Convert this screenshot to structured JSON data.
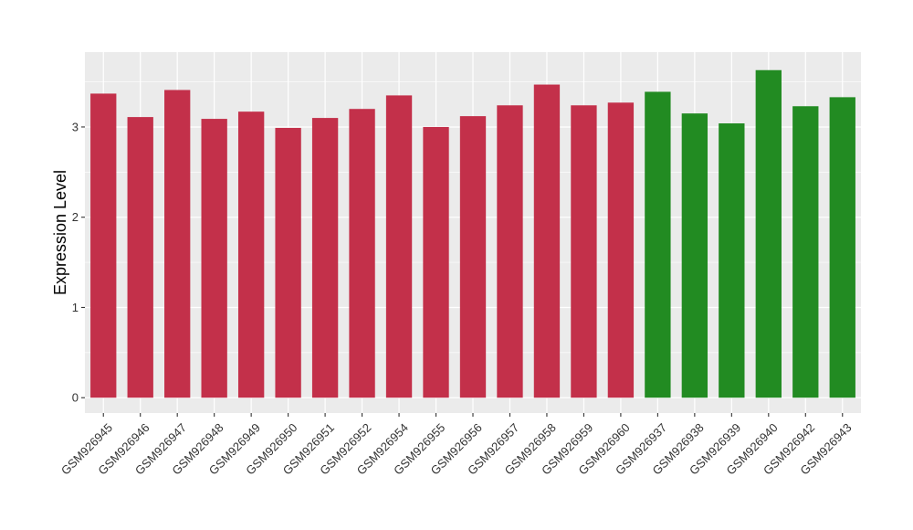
{
  "chart_data": {
    "type": "bar",
    "title": "",
    "xlabel": "",
    "ylabel": "Expression Level",
    "ylim": [
      -0.17,
      3.83
    ],
    "yticks": [
      0,
      1,
      2,
      3
    ],
    "grid": true,
    "legend": "none",
    "colors": {
      "red": "#C3304A",
      "green": "#228B22",
      "panel": "#EBEBEB",
      "grid": "#FFFFFF"
    },
    "categories": [
      "GSM926945",
      "GSM926946",
      "GSM926947",
      "GSM926948",
      "GSM926949",
      "GSM926950",
      "GSM926951",
      "GSM926952",
      "GSM926954",
      "GSM926955",
      "GSM926956",
      "GSM926957",
      "GSM926958",
      "GSM926959",
      "GSM926960",
      "GSM926937",
      "GSM926938",
      "GSM926939",
      "GSM926940",
      "GSM926942",
      "GSM926943"
    ],
    "values": [
      3.37,
      3.11,
      3.41,
      3.09,
      3.17,
      2.99,
      3.1,
      3.2,
      3.35,
      3.0,
      3.12,
      3.24,
      3.47,
      3.24,
      3.27,
      3.39,
      3.15,
      3.04,
      3.63,
      3.23,
      3.33
    ],
    "bar_colors": [
      "red",
      "red",
      "red",
      "red",
      "red",
      "red",
      "red",
      "red",
      "red",
      "red",
      "red",
      "red",
      "red",
      "red",
      "red",
      "green",
      "green",
      "green",
      "green",
      "green",
      "green"
    ]
  }
}
